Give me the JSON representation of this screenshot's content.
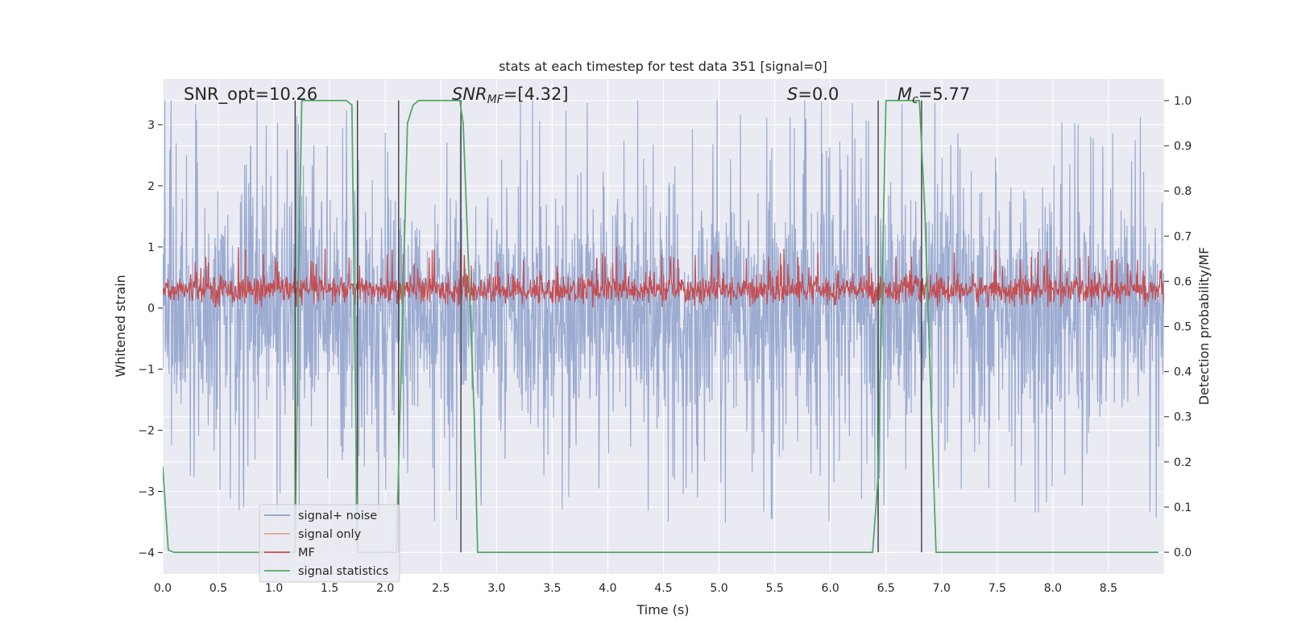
{
  "chart_data": {
    "type": "line",
    "title": "stats at each timestep for test data 351 [signal=0]",
    "xlabel": "Time (s)",
    "ylabel": "Whitened strain",
    "ylabel_right": "Detection probability/MF",
    "xlim": [
      0.0,
      9.0
    ],
    "ylim": [
      -4.35,
      3.75
    ],
    "ylim_right": [
      -0.048,
      1.048
    ],
    "xticks": [
      0.0,
      0.5,
      1.0,
      1.5,
      2.0,
      2.5,
      3.0,
      3.5,
      4.0,
      4.5,
      5.0,
      5.5,
      6.0,
      6.5,
      7.0,
      7.5,
      8.0,
      8.5
    ],
    "xtick_labels": [
      "0.0",
      "0.5",
      "1.0",
      "1.5",
      "2.0",
      "2.5",
      "3.0",
      "3.5",
      "4.0",
      "4.5",
      "5.0",
      "5.5",
      "6.0",
      "6.5",
      "7.0",
      "7.5",
      "8.0",
      "8.5"
    ],
    "yticks": [
      -4,
      -3,
      -2,
      -1,
      0,
      1,
      2,
      3
    ],
    "ytick_labels": [
      "−4",
      "−3",
      "−2",
      "−1",
      "0",
      "1",
      "2",
      "3"
    ],
    "yticks_right": [
      0.0,
      0.1,
      0.2,
      0.3,
      0.4,
      0.5,
      0.6,
      0.7,
      0.8,
      0.9,
      1.0
    ],
    "ytick_labels_right": [
      "0.0",
      "0.1",
      "0.2",
      "0.3",
      "0.4",
      "0.5",
      "0.6",
      "0.7",
      "0.8",
      "0.9",
      "1.0"
    ],
    "grid": true,
    "legend_position": "lower-left",
    "colors": {
      "signal_noise": "#8da0cb",
      "signal_only": "#e8a58c",
      "mf": "#c44e52",
      "signal_statistics": "#55a868",
      "vlines": "#3f3f3f",
      "background": "#eaeaf2"
    },
    "series": [
      {
        "name": "signal+ noise",
        "style": "noise",
        "amplitude": 1.7,
        "peak": 3.4
      },
      {
        "name": "signal only",
        "values": []
      },
      {
        "name": "MF",
        "style": "noise",
        "center": 0.3,
        "amplitude": 0.25
      },
      {
        "name": "signal statistics",
        "axis": "right",
        "x": [
          0.0,
          0.05,
          0.1,
          1.19,
          1.22,
          1.25,
          1.65,
          1.7,
          1.75,
          1.8,
          2.1,
          2.2,
          2.25,
          2.3,
          2.67,
          2.7,
          2.8,
          2.83,
          6.38,
          6.43,
          6.5,
          6.8,
          6.85,
          6.95,
          7.1,
          8.95
        ],
        "y": [
          0.19,
          0.005,
          0.0,
          0.0,
          0.6,
          1.0,
          1.0,
          0.99,
          0.0,
          0.0,
          0.0,
          0.95,
          0.99,
          1.0,
          1.0,
          0.95,
          0.3,
          0.0,
          0.0,
          0.17,
          1.0,
          1.0,
          0.75,
          0.0,
          0.0,
          0.0
        ]
      }
    ],
    "vlines_x": [
      1.19,
      1.75,
      2.12,
      2.68,
      6.43,
      6.82
    ],
    "annotations": [
      {
        "label": "SNR_opt=10.26",
        "x": 0.19,
        "y": 1.0
      },
      {
        "label": "SNR_MF=[4.32]",
        "x": 2.6,
        "y": 1.0
      },
      {
        "label": "S=0.0",
        "x": 5.6,
        "y": 1.0
      },
      {
        "label": "M_c=5.77",
        "x": 6.6,
        "y": 1.0
      }
    ]
  },
  "annotations_text": {
    "snr_opt": "SNR_opt=10.26",
    "snr_mf_main": "SNR",
    "snr_mf_sub": "MF",
    "snr_mf_value": "=[4.32]",
    "s_main": "S",
    "s_value": "=0.0",
    "mc_main": "M",
    "mc_sub": "c",
    "mc_value": "=5.77"
  },
  "legend": {
    "items": [
      {
        "label": "signal+ noise",
        "color": "#8da0cb"
      },
      {
        "label": "signal only",
        "color": "#e8a58c"
      },
      {
        "label": "MF",
        "color": "#c44e52"
      },
      {
        "label": "signal statistics",
        "color": "#55a868"
      }
    ]
  }
}
